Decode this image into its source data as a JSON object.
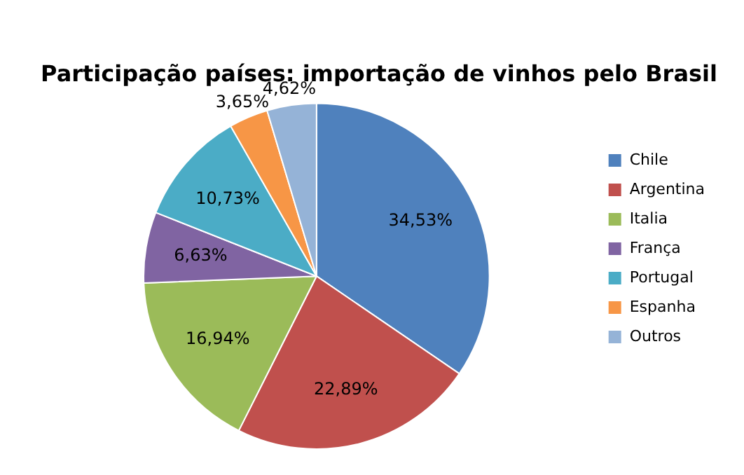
{
  "chart_data": {
    "type": "pie",
    "title": "Participação países: importação de vinhos pelo Brasil",
    "categories": [
      "Chile",
      "Argentina",
      "Italia",
      "França",
      "Portugal",
      "Espanha",
      "Outros"
    ],
    "values": [
      34.53,
      22.89,
      16.94,
      6.63,
      10.73,
      3.65,
      4.62
    ],
    "value_labels": [
      "34,53%",
      "22,89%",
      "16,94%",
      "6,63%",
      "10,73%",
      "3,65%",
      "4,62%"
    ],
    "colors": [
      "#4f81bd",
      "#c0504d",
      "#9bbb59",
      "#8064a2",
      "#4bacc6",
      "#f79646",
      "#95b3d7"
    ],
    "legend": "right"
  }
}
